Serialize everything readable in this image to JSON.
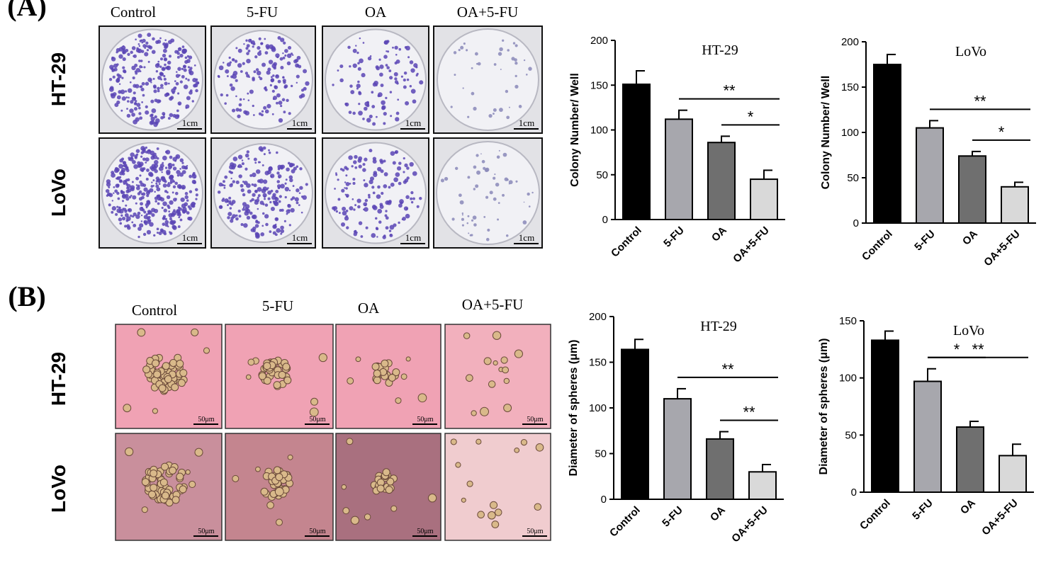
{
  "panels": [
    {
      "label": "(A)",
      "columns": [
        "Control",
        "5-FU",
        "OA",
        "OA+5-FU"
      ],
      "rows": [
        "HT-29",
        "LoVo"
      ],
      "scale_bar": "1cm"
    },
    {
      "label": "(B)",
      "columns": [
        "Control",
        "5-FU",
        "OA",
        "OA+5-FU"
      ],
      "rows": [
        "HT-29",
        "LoVo"
      ],
      "scale_bar": "50μm"
    }
  ],
  "chart_data": [
    {
      "type": "bar",
      "title": "HT-29",
      "ylabel": "Colony Number/ Well",
      "categories": [
        "Control",
        "5-FU",
        "OA",
        "OA+5-FU"
      ],
      "values": [
        151,
        112,
        86,
        45
      ],
      "errors": [
        15,
        10,
        7,
        10
      ],
      "colors": [
        "#000000",
        "#a7a7ad",
        "#6f6f6f",
        "#d9d9d9"
      ],
      "ylim": [
        0,
        200
      ],
      "yticks": [
        0,
        50,
        100,
        150,
        200
      ],
      "annotations": [
        {
          "text": "**",
          "from": "5-FU",
          "to": "OA+5-FU"
        },
        {
          "text": "*",
          "from": "OA",
          "to": "OA+5-FU"
        }
      ]
    },
    {
      "type": "bar",
      "title": "LoVo",
      "ylabel": "Colony Number/ Well",
      "categories": [
        "Control",
        "5-FU",
        "OA",
        "OA+5-FU"
      ],
      "values": [
        175,
        105,
        74,
        40
      ],
      "errors": [
        11,
        8,
        5,
        5
      ],
      "colors": [
        "#000000",
        "#a7a7ad",
        "#6f6f6f",
        "#d9d9d9"
      ],
      "ylim": [
        0,
        200
      ],
      "yticks": [
        0,
        50,
        100,
        150,
        200
      ],
      "annotations": [
        {
          "text": "**",
          "from": "5-FU",
          "to": "OA+5-FU"
        },
        {
          "text": "*",
          "from": "OA",
          "to": "OA+5-FU"
        }
      ]
    },
    {
      "type": "bar",
      "title": "HT-29",
      "ylabel": "Diameter of spheres (μm)",
      "categories": [
        "Control",
        "5-FU",
        "OA",
        "OA+5-FU"
      ],
      "values": [
        164,
        110,
        66,
        30
      ],
      "errors": [
        11,
        11,
        8,
        8
      ],
      "colors": [
        "#000000",
        "#a7a7ad",
        "#6f6f6f",
        "#d9d9d9"
      ],
      "ylim": [
        0,
        200
      ],
      "yticks": [
        0,
        50,
        100,
        150,
        200
      ],
      "annotations": [
        {
          "text": "**",
          "from": "5-FU",
          "to": "OA+5-FU"
        },
        {
          "text": "**",
          "from": "OA",
          "to": "OA+5-FU"
        }
      ]
    },
    {
      "type": "bar",
      "title": "LoVo",
      "ylabel": "Diameter of spheres (μm)",
      "categories": [
        "Control",
        "5-FU",
        "OA",
        "OA+5-FU"
      ],
      "values": [
        133,
        97,
        57,
        32
      ],
      "errors": [
        8,
        11,
        5,
        10
      ],
      "colors": [
        "#000000",
        "#a7a7ad",
        "#6f6f6f",
        "#d9d9d9"
      ],
      "ylim": [
        0,
        150
      ],
      "yticks": [
        0,
        50,
        100,
        150
      ],
      "annotations": [
        {
          "text": "**",
          "from": "5-FU",
          "to": "OA+5-FU"
        },
        {
          "text": "*",
          "from": "5-FU",
          "to": "OA"
        }
      ]
    }
  ]
}
